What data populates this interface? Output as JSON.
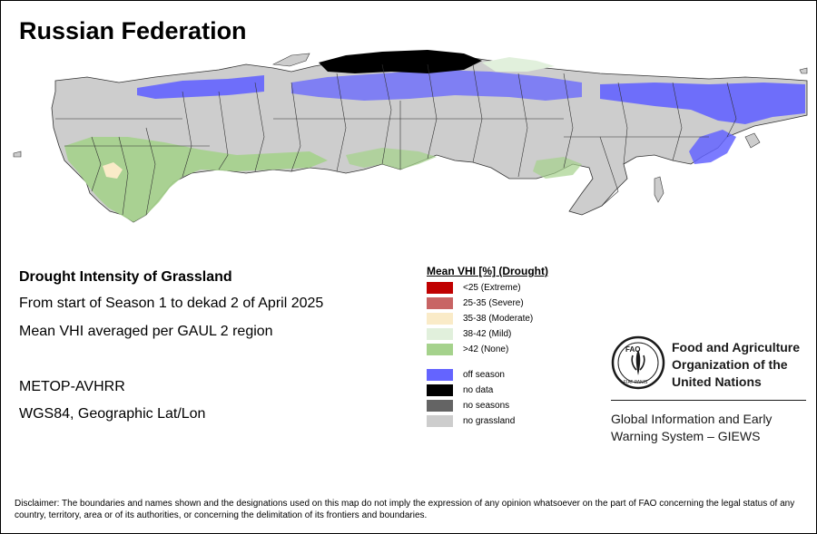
{
  "map": {
    "title": "Russian Federation"
  },
  "info": {
    "heading": "Drought Intensity of Grassland",
    "period": "From start of Season 1 to dekad 2 of April 2025",
    "method": "Mean VHI averaged per GAUL 2 region",
    "sensor": "METOP-AVHRR",
    "projection": "WGS84, Geographic Lat/Lon"
  },
  "legend": {
    "title": "Mean VHI [%] (Drought)",
    "classes": [
      {
        "label": "<25     (Extreme)",
        "color": "#c00000"
      },
      {
        "label": "25-35 (Severe)",
        "color": "#c86464"
      },
      {
        "label": "35-38 (Moderate)",
        "color": "#faebc8"
      },
      {
        "label": "38-42 (Mild)",
        "color": "#e1f0dc"
      },
      {
        "label": ">42     (None)",
        "color": "#a5d28c"
      }
    ],
    "other": [
      {
        "label": "off season",
        "color": "#6464ff"
      },
      {
        "label": "no data",
        "color": "#000000"
      },
      {
        "label": "no seasons",
        "color": "#646464"
      },
      {
        "label": "no grassland",
        "color": "#cdcdcd"
      }
    ]
  },
  "organization": {
    "logo_text": "FAO",
    "logo_motto": "FIAT PANIS",
    "name_line1": "Food and Agriculture",
    "name_line2": "Organization of the",
    "name_line3": "United Nations",
    "program_line1": "Global Information and Early",
    "program_line2": "Warning System – GIEWS"
  },
  "disclaimer": "Disclaimer: The boundaries and names shown and the designations used on this map do not imply the expression of any opinion whatsoever on the part of FAO concerning the legal status of any country, territory, area or of its authorities, or concerning the delimitation of its frontiers and boundaries.",
  "colors": {
    "off_season": "#6464ff",
    "no_grassland": "#cdcdcd",
    "none_drought": "#a5d28c",
    "mild": "#e1f0dc",
    "moderate": "#faebc8",
    "no_data": "#000000",
    "boundary": "#333333"
  }
}
